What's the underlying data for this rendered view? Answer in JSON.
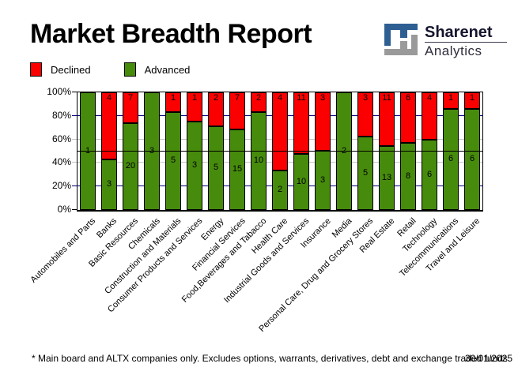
{
  "title": "Market Breadth Report",
  "logo": {
    "brand": "Sharenet",
    "sub": "Analytics",
    "icon_blue": "#2e5f93",
    "icon_gray": "#9a9a9a"
  },
  "legend": [
    {
      "label": "Declined",
      "color": "#fb0000"
    },
    {
      "label": "Advanced",
      "color": "#478b0d"
    }
  ],
  "footer": {
    "note": "* Main board and ALTX companies only. Excludes options, warrants, derivatives, debt and exchange traded funds",
    "date": "30/01/2025"
  },
  "chart_data": {
    "type": "bar",
    "stacked": true,
    "percent_stacked": true,
    "title": "Market Breadth Report",
    "categories": [
      "Automobiles and Parts",
      "Banks",
      "Basic Resources",
      "Chemicals",
      "Construction and Materials",
      "Consumer Products and Services",
      "Energy",
      "Financial Services",
      "Food,Beverages and Tabacco",
      "Health Care",
      "Industrial Goods and Services",
      "Insurance",
      "Media",
      "Personal Care, Drug and Grocery Stores",
      "Real Estate",
      "Retail",
      "Technology",
      "Telecommunications",
      "Travel and Leisure"
    ],
    "series": [
      {
        "name": "Declined",
        "color": "#fb0000",
        "values": [
          0,
          4,
          7,
          0,
          1,
          1,
          2,
          7,
          2,
          4,
          11,
          3,
          0,
          3,
          11,
          6,
          4,
          1,
          1
        ]
      },
      {
        "name": "Advanced",
        "color": "#478b0d",
        "values": [
          1,
          3,
          20,
          3,
          5,
          3,
          5,
          15,
          10,
          2,
          10,
          3,
          2,
          5,
          13,
          8,
          6,
          6,
          6
        ]
      }
    ],
    "ylim": [
      0,
      100
    ],
    "yticks": [
      {
        "label": "0%",
        "value": 0,
        "tick_color": "#000000"
      },
      {
        "label": "20%",
        "value": 20,
        "tick_color": "#000080"
      },
      {
        "label": "40%",
        "value": 40,
        "tick_color": "#c6c6c6"
      },
      {
        "label": "60%",
        "value": 60,
        "tick_color": "#c6c6c6"
      },
      {
        "label": "80%",
        "value": 80,
        "tick_color": "#000080"
      },
      {
        "label": "100%",
        "value": 100,
        "tick_color": "#000000"
      }
    ],
    "gridlines": [
      {
        "y": 20,
        "color": "#000080",
        "over_bars": false
      },
      {
        "y": 40,
        "color": "#c6c6c6",
        "over_bars": false
      },
      {
        "y": 60,
        "color": "#c6c6c6",
        "over_bars": false
      },
      {
        "y": 80,
        "color": "#000080",
        "over_bars": false
      },
      {
        "y": 50,
        "color": "#000000",
        "over_bars": true
      }
    ],
    "legend_position": "top-left",
    "bar_label_color": "#000000"
  }
}
